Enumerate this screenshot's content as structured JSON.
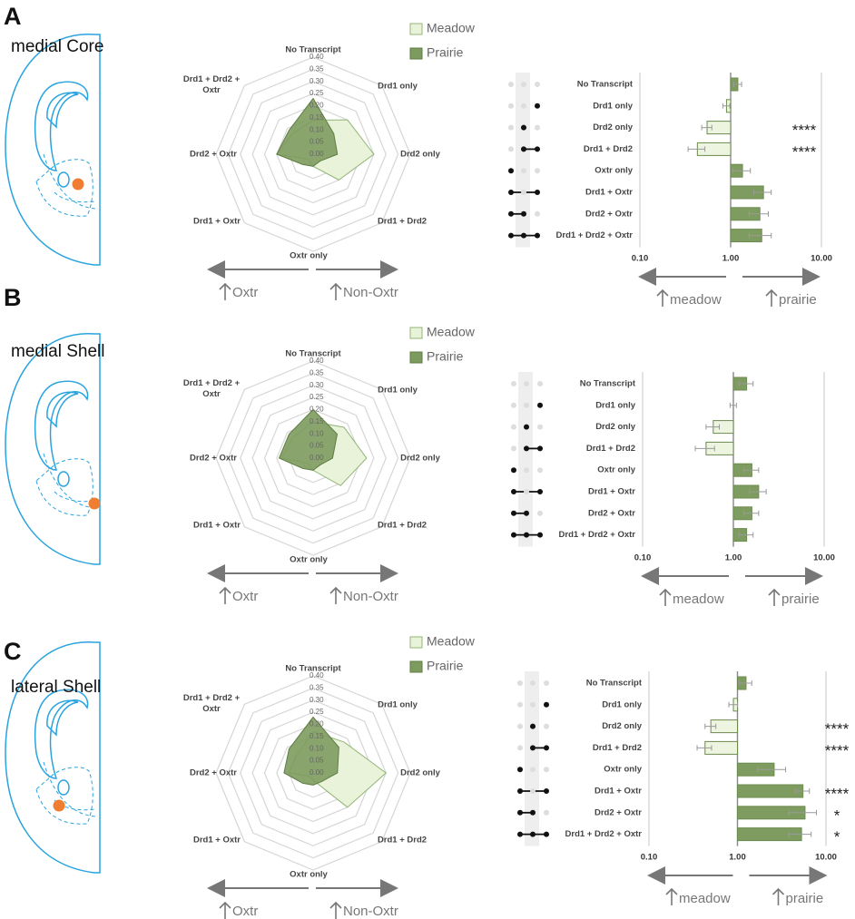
{
  "panels": [
    {
      "letter": "A",
      "region": "medial Core"
    },
    {
      "letter": "B",
      "region": "medial Shell"
    },
    {
      "letter": "C",
      "region": "lateral Shell"
    }
  ],
  "chart_data": [
    {
      "type": "radar",
      "categories": [
        "No Transcript",
        "Drd1 only",
        "Drd2 only",
        "Drd1 + Drd2",
        "Oxtr only",
        "Drd1 + Oxtr",
        "Drd2 + Oxtr",
        "Drd1 + Drd2 + Oxtr"
      ],
      "series": [
        {
          "name": "Meadow",
          "color": "#e8f3da",
          "stroke": "#93b476",
          "values": [
            0.14,
            0.2,
            0.25,
            0.15,
            0.05,
            0.03,
            0.15,
            0.12
          ]
        },
        {
          "name": "Prairie",
          "color": "#7e9b5f",
          "stroke": "#5f7d43",
          "values": [
            0.23,
            0.12,
            0.1,
            0.04,
            0.05,
            0.06,
            0.15,
            0.14
          ]
        }
      ],
      "rlim": [
        0,
        0.4
      ],
      "rticks": [
        {
          "value": 0,
          "label": "0.00"
        },
        {
          "value": 0.05,
          "label": "0.05"
        },
        {
          "value": 0.1,
          "label": "0.10"
        },
        {
          "value": 0.15,
          "label": "0.15"
        },
        {
          "value": 0.2,
          "label": "0.20"
        },
        {
          "value": 0.25,
          "label": "0.25"
        },
        {
          "value": 0.3,
          "label": "0.30"
        },
        {
          "value": 0.35,
          "label": "0.35"
        },
        {
          "value": 0.4,
          "label": "0.40"
        }
      ],
      "annotations": [
        "Oxtr",
        "Non-Oxtr"
      ]
    },
    {
      "type": "bar",
      "categories": [
        "No Transcript",
        "Drd1 only",
        "Drd2 only",
        "Drd1 + Drd2",
        "Oxtr only",
        "Drd1 + Oxtr",
        "Drd2 + Oxtr",
        "Drd1 + Drd2 + Oxtr"
      ],
      "values": [
        1.2,
        0.9,
        0.55,
        0.43,
        1.35,
        2.3,
        2.1,
        2.2
      ],
      "errors": [
        0.12,
        0.08,
        0.07,
        0.09,
        0.3,
        0.5,
        0.5,
        0.6
      ],
      "membership": [
        [
          0,
          0,
          0
        ],
        [
          0,
          0,
          1
        ],
        [
          0,
          1,
          0
        ],
        [
          0,
          1,
          1
        ],
        [
          1,
          0,
          0
        ],
        [
          1,
          0,
          1
        ],
        [
          1,
          1,
          0
        ],
        [
          1,
          1,
          1
        ]
      ],
      "significance": [
        null,
        null,
        "****",
        "****",
        null,
        null,
        null,
        null
      ],
      "xscale": "log",
      "xlim": [
        0.1,
        10
      ],
      "xticks": [
        {
          "value": 0.1,
          "label": "0.10"
        },
        {
          "value": 1,
          "label": "1.00"
        },
        {
          "value": 10,
          "label": "10.00"
        }
      ],
      "color_below": "#edf5e1",
      "color_above": "#7f9c60",
      "annotations": [
        "meadow",
        "prairie"
      ]
    },
    {
      "type": "radar",
      "categories": [
        "No Transcript",
        "Drd1 only",
        "Drd2 only",
        "Drd1 + Drd2",
        "Oxtr only",
        "Drd1 + Oxtr",
        "Drd2 + Oxtr",
        "Drd1 + Drd2 + Oxtr"
      ],
      "series": [
        {
          "name": "Meadow",
          "color": "#e8f3da",
          "stroke": "#93b476",
          "values": [
            0.15,
            0.18,
            0.22,
            0.16,
            0.05,
            0.03,
            0.13,
            0.12
          ]
        },
        {
          "name": "Prairie",
          "color": "#7e9b5f",
          "stroke": "#5f7d43",
          "values": [
            0.2,
            0.14,
            0.08,
            0.04,
            0.05,
            0.06,
            0.14,
            0.14
          ]
        }
      ],
      "rlim": [
        0,
        0.4
      ],
      "rticks": [
        {
          "value": 0,
          "label": "0.00"
        },
        {
          "value": 0.05,
          "label": "0.05"
        },
        {
          "value": 0.1,
          "label": "0.10"
        },
        {
          "value": 0.15,
          "label": "0.15"
        },
        {
          "value": 0.2,
          "label": "0.20"
        },
        {
          "value": 0.25,
          "label": "0.25"
        },
        {
          "value": 0.3,
          "label": "0.30"
        },
        {
          "value": 0.35,
          "label": "0.35"
        },
        {
          "value": 0.4,
          "label": "0.40"
        }
      ],
      "annotations": [
        "Oxtr",
        "Non-Oxtr"
      ]
    },
    {
      "type": "bar",
      "categories": [
        "No Transcript",
        "Drd1 only",
        "Drd2 only",
        "Drd1 + Drd2",
        "Oxtr only",
        "Drd1 + Oxtr",
        "Drd2 + Oxtr",
        "Drd1 + Drd2 + Oxtr"
      ],
      "values": [
        1.4,
        1.0,
        0.6,
        0.5,
        1.6,
        1.9,
        1.6,
        1.4
      ],
      "errors": [
        0.25,
        0.08,
        0.1,
        0.12,
        0.3,
        0.4,
        0.3,
        0.25
      ],
      "membership": [
        [
          0,
          0,
          0
        ],
        [
          0,
          0,
          1
        ],
        [
          0,
          1,
          0
        ],
        [
          0,
          1,
          1
        ],
        [
          1,
          0,
          0
        ],
        [
          1,
          0,
          1
        ],
        [
          1,
          1,
          0
        ],
        [
          1,
          1,
          1
        ]
      ],
      "xscale": "log",
      "xlim": [
        0.1,
        10
      ],
      "xticks": [
        {
          "value": 0.1,
          "label": "0.10"
        },
        {
          "value": 1,
          "label": "1.00"
        },
        {
          "value": 10,
          "label": "10.00"
        }
      ],
      "color_below": "#edf5e1",
      "color_above": "#7f9c60",
      "annotations": [
        "meadow",
        "prairie"
      ]
    },
    {
      "type": "radar",
      "categories": [
        "No Transcript",
        "Drd1 only",
        "Drd2 only",
        "Drd1 + Drd2",
        "Oxtr only",
        "Drd1 + Oxtr",
        "Drd2 + Oxtr",
        "Drd1 + Drd2 + Oxtr"
      ],
      "series": [
        {
          "name": "Meadow",
          "color": "#e8f3da",
          "stroke": "#93b476",
          "values": [
            0.17,
            0.18,
            0.3,
            0.2,
            0.03,
            0.02,
            0.1,
            0.1
          ]
        },
        {
          "name": "Prairie",
          "color": "#7e9b5f",
          "stroke": "#5f7d43",
          "values": [
            0.23,
            0.15,
            0.1,
            0.05,
            0.05,
            0.06,
            0.12,
            0.14
          ]
        }
      ],
      "rlim": [
        0,
        0.4
      ],
      "rticks": [
        {
          "value": 0,
          "label": "0.00"
        },
        {
          "value": 0.05,
          "label": "0.05"
        },
        {
          "value": 0.1,
          "label": "0.10"
        },
        {
          "value": 0.15,
          "label": "0.15"
        },
        {
          "value": 0.2,
          "label": "0.20"
        },
        {
          "value": 0.25,
          "label": "0.25"
        },
        {
          "value": 0.3,
          "label": "0.30"
        },
        {
          "value": 0.35,
          "label": "0.35"
        },
        {
          "value": 0.4,
          "label": "0.40"
        }
      ],
      "annotations": [
        "Oxtr",
        "Non-Oxtr"
      ]
    },
    {
      "type": "bar",
      "categories": [
        "No Transcript",
        "Drd1 only",
        "Drd2 only",
        "Drd1 + Drd2",
        "Oxtr only",
        "Drd1 + Oxtr",
        "Drd2 + Oxtr",
        "Drd1 + Drd2 + Oxtr"
      ],
      "values": [
        1.25,
        0.9,
        0.5,
        0.43,
        2.6,
        5.5,
        5.8,
        5.3
      ],
      "errors": [
        0.2,
        0.1,
        0.07,
        0.08,
        0.9,
        1.0,
        2.0,
        1.5
      ],
      "membership": [
        [
          0,
          0,
          0
        ],
        [
          0,
          0,
          1
        ],
        [
          0,
          1,
          0
        ],
        [
          0,
          1,
          1
        ],
        [
          1,
          0,
          0
        ],
        [
          1,
          0,
          1
        ],
        [
          1,
          1,
          0
        ],
        [
          1,
          1,
          1
        ]
      ],
      "significance": [
        null,
        null,
        "****",
        "****",
        null,
        "****",
        "*",
        "*"
      ],
      "xscale": "log",
      "xlim": [
        0.1,
        10
      ],
      "xticks": [
        {
          "value": 0.1,
          "label": "0.10"
        },
        {
          "value": 1,
          "label": "1.00"
        },
        {
          "value": 10,
          "label": "10.00"
        }
      ],
      "color_below": "#edf5e1",
      "color_above": "#7f9c60",
      "annotations": [
        "meadow",
        "prairie"
      ]
    }
  ]
}
